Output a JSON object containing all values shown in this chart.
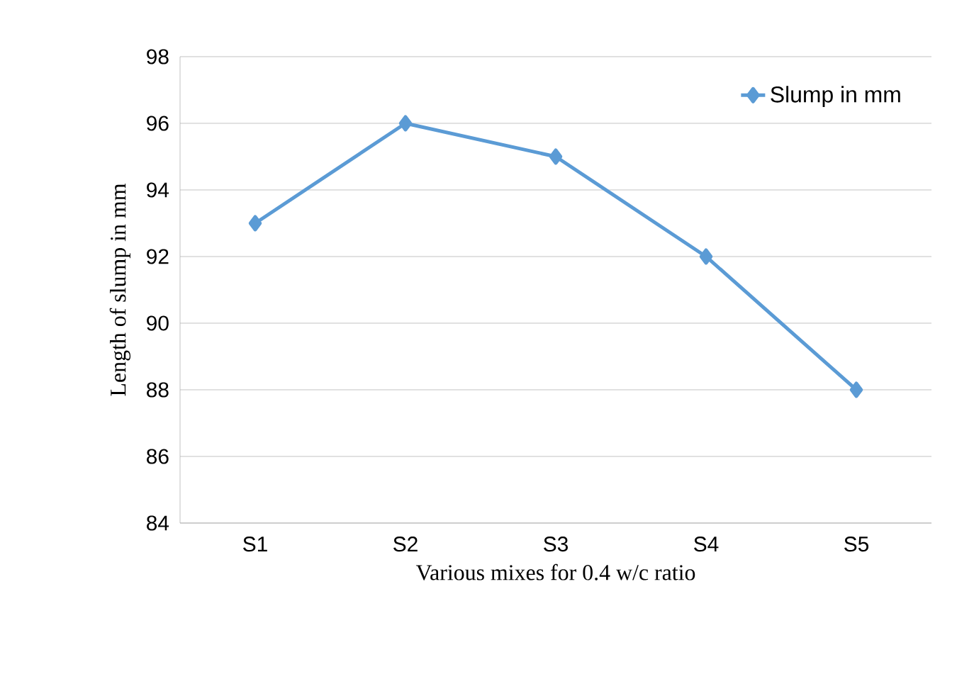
{
  "chart_data": {
    "type": "line",
    "xlabel": "Various mixes for 0.4 w/c ratio",
    "ylabel": "Length of slump in mm",
    "categories": [
      "S1",
      "S2",
      "S3",
      "S4",
      "S5"
    ],
    "series": [
      {
        "name": "Slump in mm",
        "color": "#5b9bd5",
        "values": [
          93,
          96,
          95,
          92,
          88
        ]
      }
    ],
    "ylim": [
      84,
      98
    ],
    "yticks": [
      84,
      86,
      88,
      90,
      92,
      94,
      96,
      98
    ],
    "grid": "y",
    "legend": "top right",
    "marker": "diamond",
    "line_style": "solid"
  }
}
